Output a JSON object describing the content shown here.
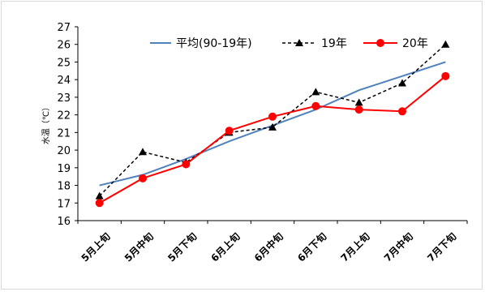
{
  "chart_data": {
    "type": "line",
    "title": "",
    "xlabel": "",
    "ylabel": "水温（℃）",
    "categories": [
      "5月上旬",
      "5月中旬",
      "5月下旬",
      "6月上旬",
      "6月中旬",
      "6月下旬",
      "7月上旬",
      "7月中旬",
      "7月下旬"
    ],
    "ylim": [
      16,
      27
    ],
    "yticks": [
      16,
      17,
      18,
      19,
      20,
      21,
      22,
      23,
      24,
      25,
      26,
      27
    ],
    "grid": false,
    "legend": "top",
    "series": [
      {
        "name": "平均(90-19年)",
        "color": "#4f81bd",
        "style": "solid",
        "marker": "none",
        "values": [
          18.0,
          18.6,
          19.5,
          20.5,
          21.4,
          22.3,
          23.4,
          24.2,
          25.0
        ]
      },
      {
        "name": "19年",
        "color": "#000000",
        "style": "dashed",
        "marker": "triangle",
        "values": [
          17.4,
          19.9,
          19.3,
          21.0,
          21.3,
          23.3,
          22.7,
          23.8,
          26.0
        ]
      },
      {
        "name": "20年",
        "color": "#ff0000",
        "style": "solid",
        "marker": "circle",
        "values": [
          17.0,
          18.4,
          19.2,
          21.1,
          21.9,
          22.5,
          22.3,
          22.2,
          24.2
        ]
      }
    ]
  }
}
